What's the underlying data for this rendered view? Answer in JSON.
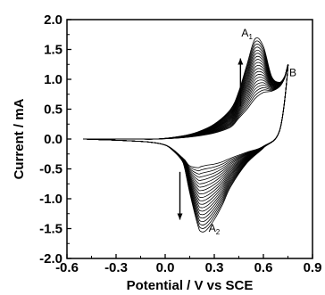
{
  "chart_data": {
    "type": "line",
    "xlabel": "Potential / V vs SCE",
    "ylabel": "Current / mA",
    "xlim": [
      -0.6,
      0.9
    ],
    "ylim": [
      -2.0,
      2.0
    ],
    "xticks": [
      -0.6,
      -0.3,
      0.0,
      0.3,
      0.6,
      0.9
    ],
    "yticks": [
      -2.0,
      -1.5,
      -1.0,
      -0.5,
      0.0,
      0.5,
      1.0,
      1.5,
      2.0
    ],
    "xtick_labels": [
      "-0.6",
      "-0.3",
      "0.0",
      "0.3",
      "0.6",
      "0.9"
    ],
    "ytick_labels": [
      "-2.0",
      "-1.5",
      "-1.0",
      "-0.5",
      "0.0",
      "0.5",
      "1.0",
      "1.5",
      "2.0"
    ],
    "grid": false,
    "cycles": 20,
    "anodic_forward": {
      "x": [
        -0.5,
        -0.2,
        -0.05,
        0.1,
        0.2,
        0.3,
        0.4,
        0.45,
        0.5,
        0.55,
        0.6,
        0.65,
        0.7,
        0.73,
        0.75
      ],
      "first_cycle_y": [
        0.0,
        0.0,
        0.0,
        0.02,
        0.05,
        0.1,
        0.2,
        0.35,
        0.5,
        0.68,
        0.78,
        0.8,
        0.88,
        1.02,
        1.2
      ],
      "last_cycle_y": [
        0.0,
        0.0,
        0.0,
        0.05,
        0.12,
        0.25,
        0.5,
        0.8,
        1.25,
        1.68,
        1.55,
        1.05,
        0.95,
        1.05,
        1.2
      ]
    },
    "cathodic_reverse": {
      "x": [
        0.75,
        0.7,
        0.6,
        0.5,
        0.4,
        0.35,
        0.3,
        0.25,
        0.22,
        0.2,
        0.15,
        0.12,
        0.1,
        0.05,
        0.0,
        -0.1,
        -0.3,
        -0.5
      ],
      "first_cycle_y": [
        1.2,
        0.15,
        -0.12,
        -0.22,
        -0.32,
        -0.38,
        -0.42,
        -0.44,
        -0.46,
        -0.48,
        -0.45,
        -0.35,
        -0.3,
        -0.18,
        -0.1,
        -0.05,
        -0.02,
        0.0
      ],
      "last_cycle_y": [
        1.2,
        0.15,
        -0.15,
        -0.4,
        -0.8,
        -1.1,
        -1.35,
        -1.53,
        -1.55,
        -1.45,
        -0.9,
        -0.5,
        -0.35,
        -0.2,
        -0.1,
        -0.05,
        -0.02,
        0.0
      ]
    },
    "annotations": [
      {
        "label": "A",
        "sub": "1",
        "x": 0.5,
        "y": 1.72
      },
      {
        "label": "B",
        "sub": "",
        "x": 0.78,
        "y": 1.05
      },
      {
        "label": "A",
        "sub": "2",
        "x": 0.3,
        "y": -1.55
      }
    ],
    "arrows": [
      {
        "direction": "up",
        "x": 0.46,
        "y_from": 0.55,
        "y_to": 1.35
      },
      {
        "direction": "down",
        "x": 0.09,
        "y_from": -0.55,
        "y_to": -1.35
      }
    ]
  }
}
